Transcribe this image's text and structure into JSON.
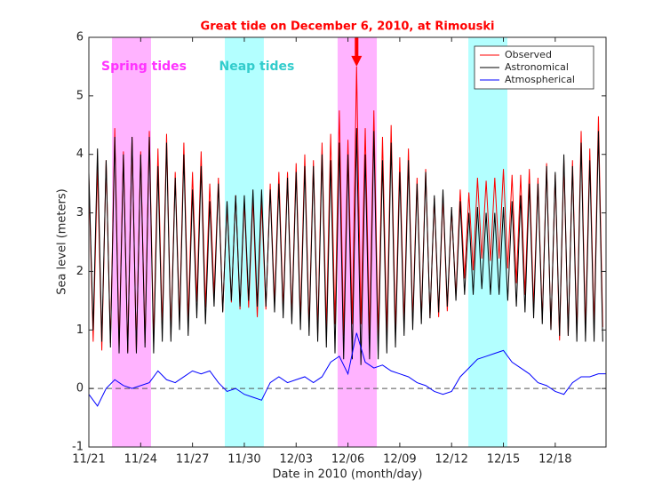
{
  "chart_data": {
    "type": "line",
    "title": "Great tide on December 6, 2010, at Rimouski",
    "x_label": "Date in 2010 (month/day)",
    "y_label": "Sea level (meters)",
    "xlim": [
      0,
      29.94
    ],
    "ylim": [
      -1,
      6
    ],
    "xticks": [
      {
        "value": 0,
        "label": "11/21"
      },
      {
        "value": 3,
        "label": "11/24"
      },
      {
        "value": 6,
        "label": "11/27"
      },
      {
        "value": 9,
        "label": "11/30"
      },
      {
        "value": 12,
        "label": "12/03"
      },
      {
        "value": 15,
        "label": "12/06"
      },
      {
        "value": 18,
        "label": "12/09"
      },
      {
        "value": 21,
        "label": "12/12"
      },
      {
        "value": 24,
        "label": "12/15"
      },
      {
        "value": 27,
        "label": "12/18"
      }
    ],
    "yticks": [
      -1,
      0,
      1,
      2,
      3,
      4,
      5,
      6
    ],
    "legend": "top-right",
    "reference_line": {
      "y": 0,
      "color": "#555555"
    },
    "shaded_regions": [
      {
        "x": [
          1.34,
          3.6
        ],
        "color": "#ffb3ff",
        "label": "Spring tides",
        "label_color": "#ff33ff"
      },
      {
        "x": [
          7.87,
          10.13
        ],
        "color": "#b3ffff",
        "label": "Neap tides",
        "label_color": "#33cccc"
      },
      {
        "x": [
          14.4,
          16.67
        ],
        "color": "#ffb3ff"
      },
      {
        "x": [
          21.97,
          24.23
        ],
        "color": "#b3ffff"
      }
    ],
    "arrow": {
      "x": 15.5,
      "y": [
        6,
        5.5
      ],
      "color": "#ff0000"
    },
    "x": [
      0,
      0.25,
      0.5,
      0.75,
      1,
      1.25,
      1.5,
      1.75,
      2,
      2.25,
      2.5,
      2.75,
      3,
      3.25,
      3.5,
      3.75,
      4,
      4.25,
      4.5,
      4.75,
      5,
      5.25,
      5.5,
      5.75,
      6,
      6.25,
      6.5,
      6.75,
      7,
      7.25,
      7.5,
      7.75,
      8,
      8.25,
      8.5,
      8.75,
      9,
      9.25,
      9.5,
      9.75,
      10,
      10.25,
      10.5,
      10.75,
      11,
      11.25,
      11.5,
      11.75,
      12,
      12.25,
      12.5,
      12.75,
      13,
      13.25,
      13.5,
      13.75,
      14,
      14.25,
      14.5,
      14.75,
      15,
      15.25,
      15.5,
      15.75,
      16,
      16.25,
      16.5,
      16.75,
      17,
      17.25,
      17.5,
      17.75,
      18,
      18.25,
      18.5,
      18.75,
      19,
      19.25,
      19.5,
      19.75,
      20,
      20.25,
      20.5,
      20.75,
      21,
      21.25,
      21.5,
      21.75,
      22,
      22.25,
      22.5,
      22.75,
      23,
      23.25,
      23.5,
      23.75,
      24,
      24.25,
      24.5,
      24.75,
      25,
      25.25,
      25.5,
      25.75,
      26,
      26.25,
      26.5,
      26.75,
      27,
      27.25,
      27.5,
      27.75,
      28,
      28.25,
      28.5,
      28.75,
      29,
      29.25,
      29.5,
      29.75
    ],
    "series": [
      {
        "name": "Observed",
        "color": "#ff0000",
        "values": [
          3.6,
          0.8,
          3.8,
          0.65,
          3.9,
          0.78,
          4.45,
          0.7,
          4.05,
          0.63,
          4.3,
          0.63,
          4.05,
          0.78,
          4.4,
          0.8,
          4.1,
          1.02,
          4.35,
          0.92,
          3.7,
          1.15,
          4.2,
          1.15,
          3.7,
          1.48,
          4.05,
          1.38,
          3.5,
          1.6,
          3.6,
          1.32,
          3.15,
          1.47,
          3.3,
          1.35,
          3.2,
          1.38,
          3.25,
          1.22,
          3.2,
          1.35,
          3.5,
          1.45,
          3.7,
          1.35,
          3.7,
          1.22,
          3.85,
          1.18,
          4.0,
          1.05,
          3.9,
          0.95,
          4.2,
          1.02,
          4.35,
          1.1,
          4.75,
          0.9,
          4.25,
          1.1,
          5.5,
          1.1,
          4.45,
          0.9,
          4.75,
          0.88,
          4.3,
          0.95,
          4.5,
          0.98,
          3.95,
          1.12,
          4.1,
          1.15,
          3.6,
          1.18,
          3.75,
          1.2,
          3.25,
          1.22,
          3.3,
          1.32,
          3.05,
          1.58,
          3.4,
          1.88,
          3.35,
          2.02,
          3.6,
          2.22,
          3.55,
          2.18,
          3.6,
          2.22,
          3.75,
          2.05,
          3.65,
          1.8,
          3.65,
          1.6,
          3.75,
          1.38,
          3.6,
          1.18,
          3.85,
          1.0,
          3.65,
          0.82,
          3.9,
          0.9,
          3.9,
          0.95,
          4.4,
          1.0,
          4.1,
          1.02,
          4.65,
          1.05
        ]
      },
      {
        "name": "Astronomical",
        "color": "#000000",
        "values": [
          3.7,
          1.0,
          4.1,
          0.8,
          3.9,
          0.7,
          4.3,
          0.6,
          4.0,
          0.6,
          4.3,
          0.6,
          4.0,
          0.7,
          4.3,
          0.6,
          3.8,
          0.8,
          4.2,
          0.8,
          3.6,
          1.0,
          4.0,
          0.9,
          3.4,
          1.2,
          3.8,
          1.1,
          3.2,
          1.4,
          3.5,
          1.3,
          3.2,
          1.5,
          3.3,
          1.4,
          3.3,
          1.5,
          3.4,
          1.4,
          3.4,
          1.4,
          3.4,
          1.3,
          3.5,
          1.2,
          3.6,
          1.1,
          3.7,
          1.0,
          3.8,
          0.9,
          3.8,
          0.8,
          4.0,
          0.7,
          3.9,
          0.6,
          4.2,
          0.5,
          4.0,
          0.5,
          4.45,
          0.4,
          4.0,
          0.5,
          4.4,
          0.5,
          3.9,
          0.6,
          4.2,
          0.7,
          3.7,
          0.9,
          3.9,
          1.0,
          3.5,
          1.1,
          3.7,
          1.2,
          3.3,
          1.3,
          3.4,
          1.4,
          3.1,
          1.5,
          3.2,
          1.6,
          3.0,
          1.6,
          3.1,
          1.7,
          3.0,
          1.6,
          3.0,
          1.6,
          3.1,
          1.5,
          3.2,
          1.4,
          3.3,
          1.3,
          3.5,
          1.2,
          3.5,
          1.1,
          3.8,
          1.0,
          3.7,
          0.9,
          4.0,
          0.9,
          3.8,
          0.8,
          4.2,
          0.8,
          3.9,
          0.8,
          4.4,
          0.8
        ]
      },
      {
        "name": "Atmospherical",
        "color": "#0000ff",
        "x": [
          0,
          0.5,
          1,
          1.5,
          2,
          2.5,
          3,
          3.5,
          4,
          4.5,
          5,
          5.5,
          6,
          6.5,
          7,
          7.5,
          8,
          8.5,
          9,
          9.5,
          10,
          10.5,
          11,
          11.5,
          12,
          12.5,
          13,
          13.5,
          14,
          14.5,
          15,
          15.5,
          16,
          16.5,
          17,
          17.5,
          18,
          18.5,
          19,
          19.5,
          20,
          20.5,
          21,
          21.5,
          22,
          22.5,
          23,
          23.5,
          24,
          24.5,
          25,
          25.5,
          26,
          26.5,
          27,
          27.5,
          28,
          28.5,
          29,
          29.5,
          29.94
        ],
        "values": [
          -0.1,
          -0.3,
          0.0,
          0.15,
          0.05,
          0.0,
          0.05,
          0.1,
          0.3,
          0.15,
          0.1,
          0.2,
          0.3,
          0.25,
          0.3,
          0.1,
          -0.05,
          0.0,
          -0.1,
          -0.15,
          -0.2,
          0.1,
          0.2,
          0.1,
          0.15,
          0.2,
          0.1,
          0.2,
          0.45,
          0.55,
          0.25,
          0.95,
          0.45,
          0.35,
          0.4,
          0.3,
          0.25,
          0.2,
          0.1,
          0.05,
          -0.05,
          -0.1,
          -0.05,
          0.2,
          0.35,
          0.5,
          0.55,
          0.6,
          0.65,
          0.45,
          0.35,
          0.25,
          0.1,
          0.05,
          -0.05,
          -0.1,
          0.1,
          0.2,
          0.2,
          0.25,
          0.25
        ]
      }
    ]
  }
}
